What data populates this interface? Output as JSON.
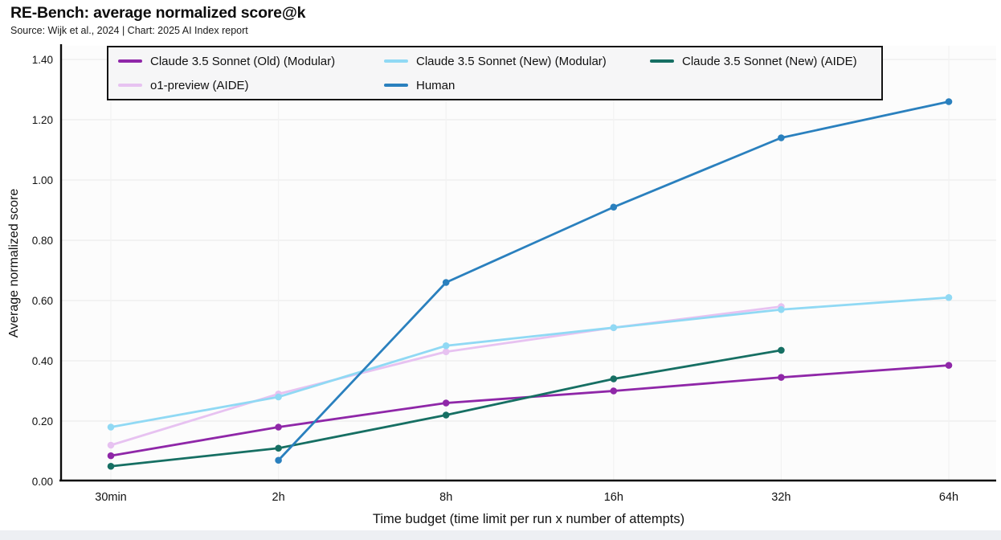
{
  "page": {
    "title": "RE-Bench: average normalized score@k",
    "subtitle": "Source: Wijk et al., 2024 | Chart: 2025 AI Index report"
  },
  "chart_data": {
    "type": "line",
    "title": "RE-Bench: average normalized score@k",
    "source_note": "Source: Wijk et al., 2024 | Chart: 2025 AI Index report",
    "xlabel": "Time budget (time limit per run x number of attempts)",
    "ylabel": "Average normalized score",
    "categories": [
      "30min",
      "2h",
      "8h",
      "16h",
      "32h",
      "64h"
    ],
    "ylim": [
      0,
      1.4
    ],
    "ytick_step": 0.2,
    "ytick_labels": [
      "0.00",
      "0.20",
      "0.40",
      "0.60",
      "0.80",
      "1.00",
      "1.20",
      "1.40"
    ],
    "grid": true,
    "legend_position": "top-inside",
    "series": [
      {
        "name": "Claude 3.5 Sonnet (Old) (Modular)",
        "color": "#8F27A8",
        "values": [
          0.085,
          0.18,
          0.26,
          0.3,
          0.345,
          0.385
        ]
      },
      {
        "name": "Claude 3.5 Sonnet (New) (Modular)",
        "color": "#90D9F4",
        "values": [
          0.18,
          0.28,
          0.45,
          0.51,
          0.57,
          0.61
        ]
      },
      {
        "name": "Claude 3.5 Sonnet (New) (AIDE)",
        "color": "#166F63",
        "values": [
          0.05,
          0.11,
          0.22,
          0.34,
          0.435,
          null
        ]
      },
      {
        "name": "o1-preview (AIDE)",
        "color": "#E7C2F1",
        "values": [
          0.12,
          0.29,
          0.43,
          0.51,
          0.58,
          null
        ]
      },
      {
        "name": "Human",
        "color": "#2A80BE",
        "values": [
          null,
          0.07,
          0.66,
          0.91,
          1.14,
          1.26
        ]
      }
    ]
  },
  "colors": {
    "axis": "#0a0a0a",
    "grid_h": "#ebebeb",
    "grid_v": "#f2f2f2",
    "plot_bg": "#fcfcfc",
    "legend_bg": "#f6f6f7",
    "legend_border": "#141414",
    "bottom_strip": "#edeff3"
  }
}
